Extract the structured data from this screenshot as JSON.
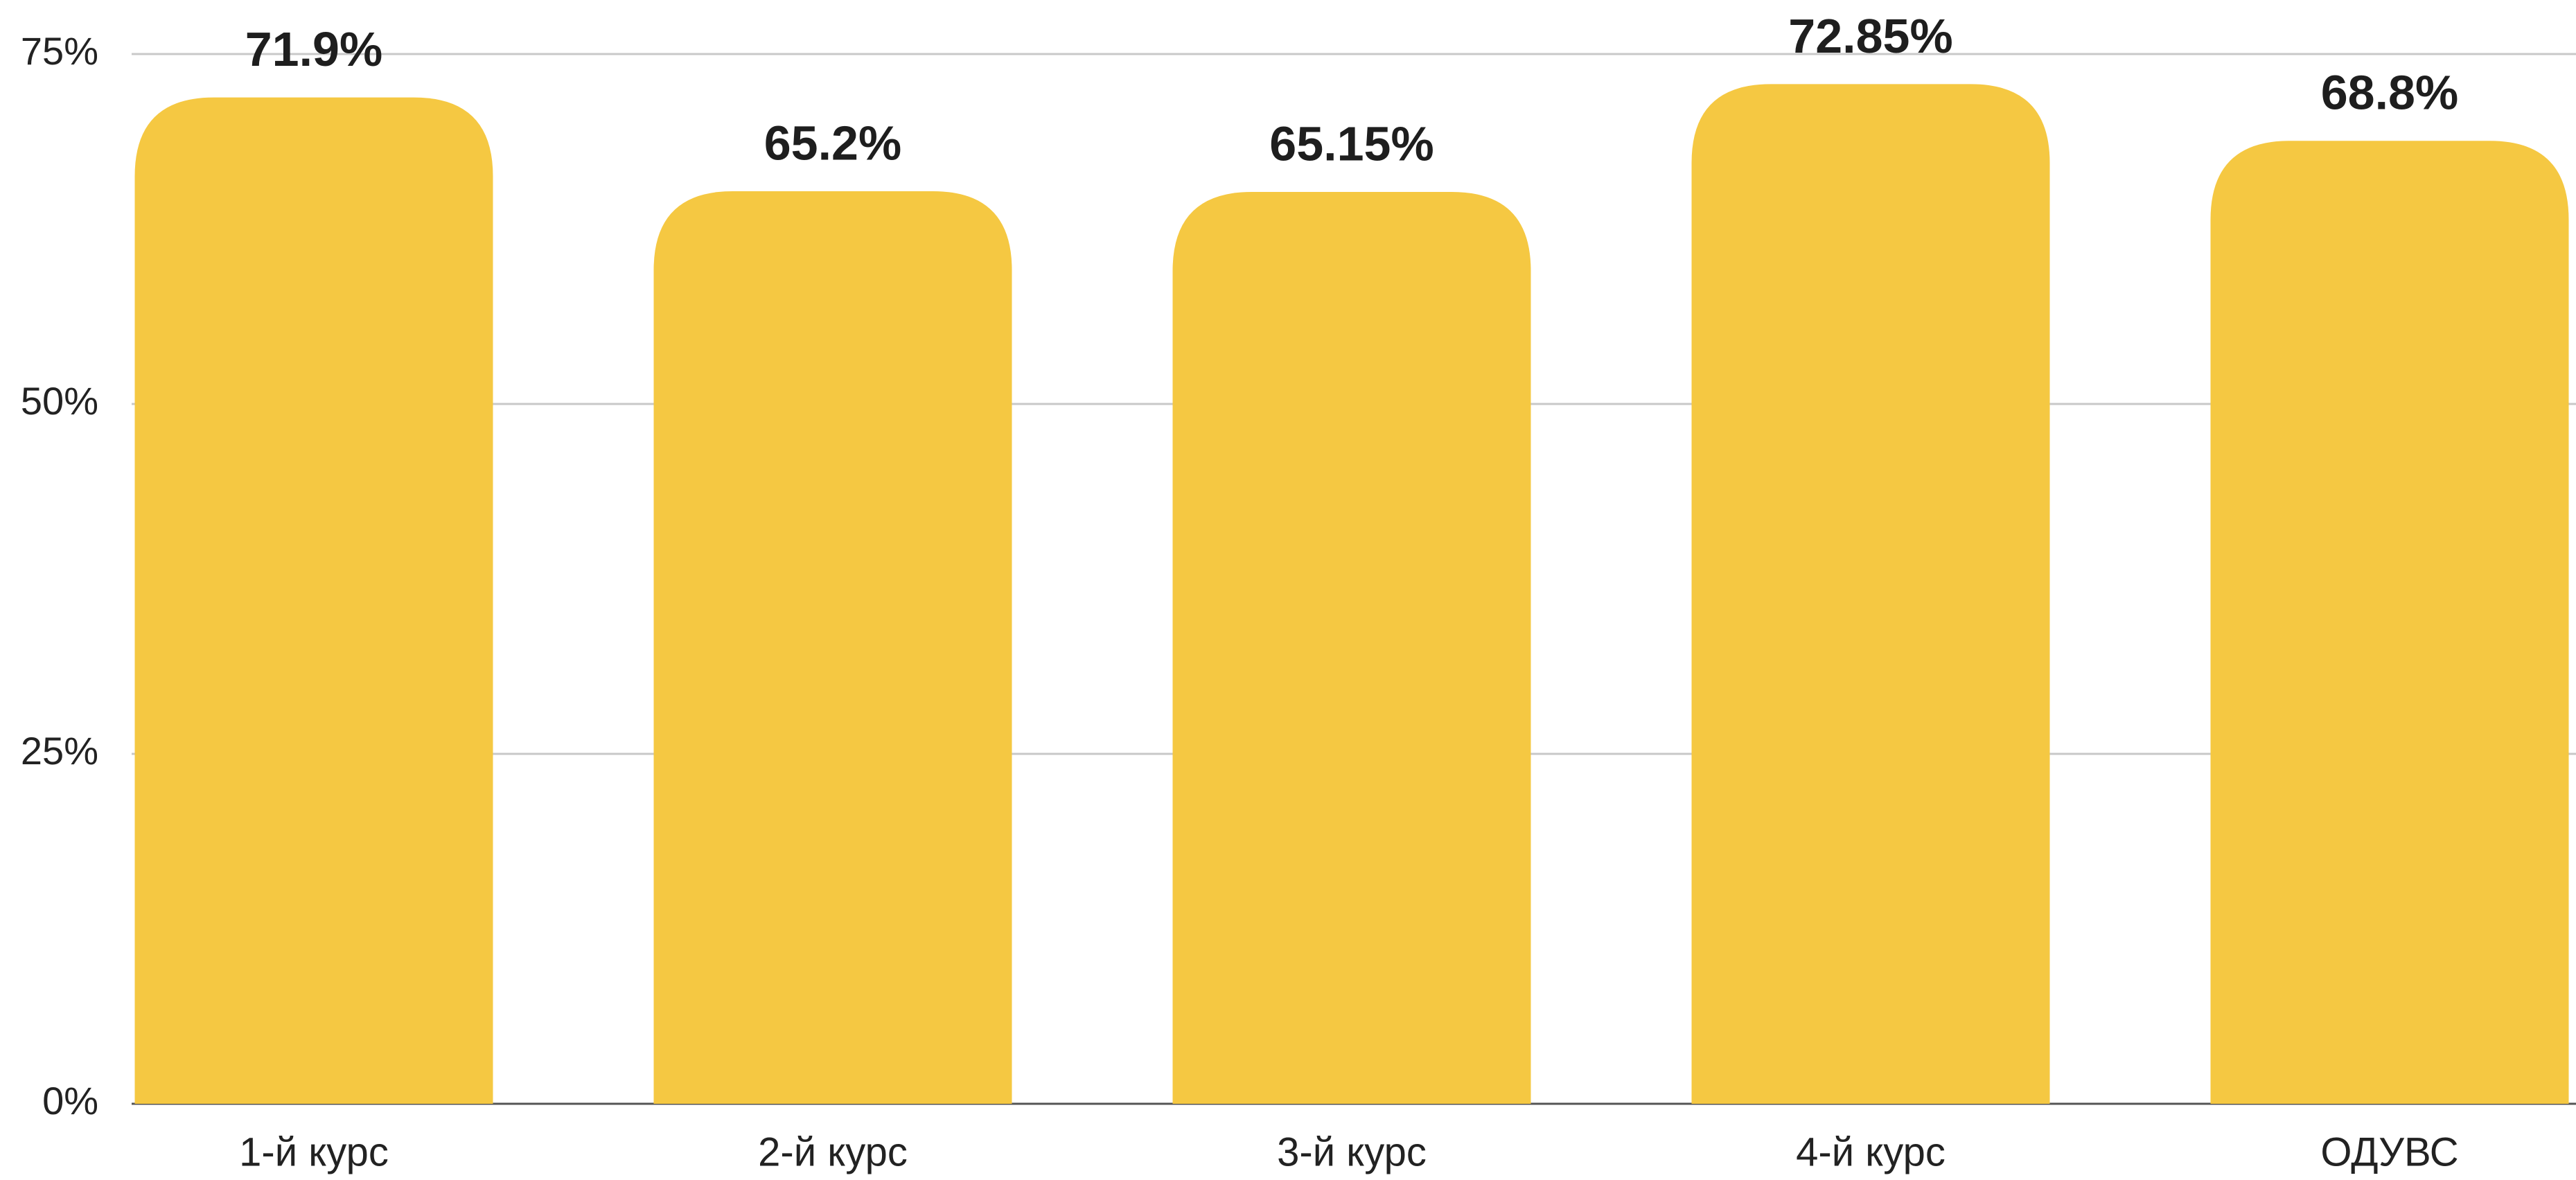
{
  "chart_data": {
    "type": "bar",
    "categories": [
      "1-й курс",
      "2-й курс",
      "3-й курс",
      "4-й курс",
      "ОДУВС"
    ],
    "values": [
      71.9,
      65.2,
      65.15,
      72.85,
      68.8
    ],
    "value_labels": [
      "71.9%",
      "65.2%",
      "65.15%",
      "72.85%",
      "68.8%"
    ],
    "color": "#f5c842",
    "ylim": [
      0,
      75
    ],
    "yticks": [
      {
        "value": 0,
        "label": "0%"
      },
      {
        "value": 25,
        "label": "25%"
      },
      {
        "value": 50,
        "label": "50%"
      },
      {
        "value": 75,
        "label": "75%"
      }
    ],
    "grid": true
  }
}
